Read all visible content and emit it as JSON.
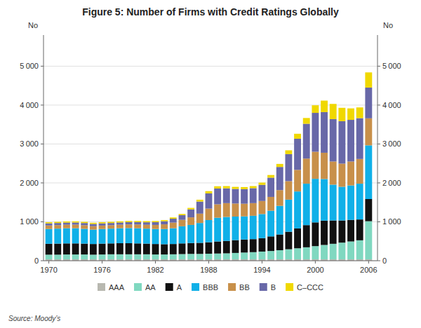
{
  "chart_data": {
    "type": "bar",
    "stacked": true,
    "title": "Figure 5: Number of Firms with Credit Ratings Globally",
    "ylabel": "No",
    "y2label": "No",
    "source": "Source: Moody’s",
    "grid": true,
    "legend": "bottom",
    "x": [
      1970,
      1971,
      1972,
      1973,
      1974,
      1975,
      1976,
      1977,
      1978,
      1979,
      1980,
      1981,
      1982,
      1983,
      1984,
      1985,
      1986,
      1987,
      1988,
      1989,
      1990,
      1991,
      1992,
      1993,
      1994,
      1995,
      1996,
      1997,
      1998,
      1999,
      2000,
      2001,
      2002,
      2003,
      2004,
      2005,
      2006
    ],
    "xlim": [
      1969.4,
      2007.0
    ],
    "xticks": [
      1970,
      1976,
      1982,
      1988,
      1994,
      2000,
      2006
    ],
    "ylim": [
      0,
      5800
    ],
    "yticks": [
      0,
      {
        "value": 1000,
        "label": "1 000"
      },
      {
        "value": 2000,
        "label": "2 000"
      },
      {
        "value": 3000,
        "label": "3 000"
      },
      {
        "value": 4000,
        "label": "4 000"
      },
      {
        "value": 5000,
        "label": "5 000"
      }
    ],
    "y2lim": [
      0,
      5800
    ],
    "y2ticks": [
      0,
      {
        "value": 1000,
        "label": "1 000"
      },
      {
        "value": 2000,
        "label": "2 000"
      },
      {
        "value": 3000,
        "label": "3 000"
      },
      {
        "value": 4000,
        "label": "4 000"
      },
      {
        "value": 5000,
        "label": "5 000"
      }
    ],
    "series": [
      {
        "name": "AAA",
        "color": "#b8b8b0",
        "values": [
          35,
          35,
          35,
          35,
          35,
          35,
          35,
          35,
          35,
          35,
          35,
          35,
          35,
          35,
          35,
          35,
          35,
          35,
          35,
          35,
          35,
          35,
          35,
          35,
          35,
          35,
          35,
          35,
          35,
          35,
          35,
          35,
          35,
          35,
          35,
          35,
          35
        ]
      },
      {
        "name": "AA",
        "color": "#80d8c0",
        "values": [
          120,
          120,
          125,
          125,
          125,
          120,
          125,
          130,
          130,
          130,
          130,
          130,
          125,
          125,
          130,
          135,
          140,
          140,
          145,
          150,
          155,
          165,
          175,
          185,
          200,
          215,
          235,
          260,
          285,
          310,
          340,
          370,
          400,
          430,
          460,
          490,
          980
        ]
      },
      {
        "name": "A",
        "color": "#111111",
        "values": [
          280,
          285,
          285,
          285,
          280,
          275,
          280,
          280,
          285,
          285,
          280,
          275,
          270,
          265,
          265,
          275,
          280,
          285,
          295,
          310,
          320,
          330,
          335,
          335,
          345,
          375,
          405,
          450,
          510,
          570,
          610,
          625,
          600,
          570,
          555,
          535,
          570
        ]
      },
      {
        "name": "BBB",
        "color": "#10b0e8",
        "values": [
          380,
          385,
          390,
          390,
          380,
          370,
          375,
          380,
          385,
          390,
          390,
          385,
          385,
          390,
          405,
          440,
          465,
          510,
          570,
          610,
          615,
          605,
          595,
          600,
          620,
          660,
          735,
          825,
          950,
          1065,
          1120,
          1070,
          920,
          865,
          885,
          920,
          1380
        ]
      },
      {
        "name": "BB",
        "color": "#c8904a",
        "values": [
          90,
          90,
          90,
          92,
          92,
          88,
          88,
          88,
          90,
          92,
          95,
          98,
          105,
          120,
          145,
          165,
          195,
          240,
          295,
          345,
          355,
          335,
          325,
          325,
          335,
          355,
          405,
          475,
          555,
          645,
          695,
          675,
          595,
          595,
          615,
          635,
          695
        ]
      },
      {
        "name": "B",
        "color": "#6868a8",
        "values": [
          55,
          55,
          55,
          55,
          57,
          57,
          57,
          57,
          58,
          60,
          62,
          65,
          70,
          80,
          100,
          120,
          205,
          310,
          390,
          405,
          380,
          375,
          375,
          385,
          415,
          495,
          595,
          695,
          800,
          895,
          1000,
          1045,
          1090,
          1090,
          1070,
          1050,
          790
        ]
      },
      {
        "name": "C–CCC",
        "color": "#f0d800",
        "values": [
          30,
          30,
          30,
          30,
          30,
          30,
          30,
          30,
          30,
          30,
          30,
          30,
          30,
          30,
          32,
          32,
          38,
          48,
          58,
          58,
          58,
          53,
          53,
          53,
          58,
          68,
          78,
          98,
          128,
          148,
          195,
          295,
          390,
          345,
          295,
          275,
          390
        ]
      }
    ]
  }
}
